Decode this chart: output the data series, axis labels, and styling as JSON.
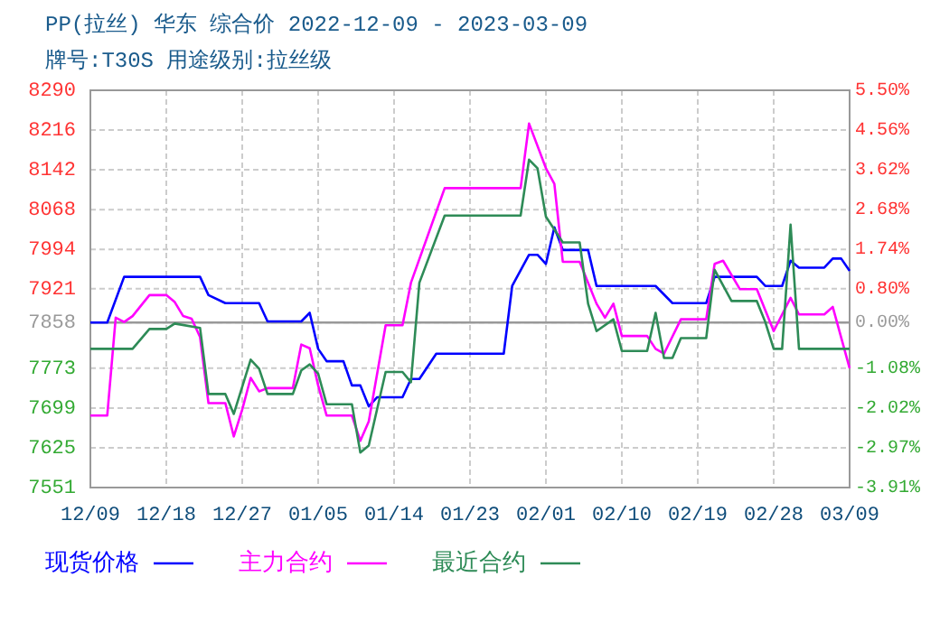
{
  "chart_data": {
    "type": "line",
    "title": "PP(拉丝) 华东 综合价 2022-12-09 - 2023-03-09",
    "subtitle": "牌号:T30S 用途级别:拉丝级",
    "xlim": [
      "2022-12-09",
      "2023-03-09"
    ],
    "xticks": [
      {
        "value": "2022-12-09",
        "label": "12/09"
      },
      {
        "value": "2022-12-18",
        "label": "12/18"
      },
      {
        "value": "2022-12-27",
        "label": "12/27"
      },
      {
        "value": "2023-01-05",
        "label": "01/05"
      },
      {
        "value": "2023-01-14",
        "label": "01/14"
      },
      {
        "value": "2023-01-23",
        "label": "01/23"
      },
      {
        "value": "2023-02-01",
        "label": "02/01"
      },
      {
        "value": "2023-02-10",
        "label": "02/10"
      },
      {
        "value": "2023-02-19",
        "label": "02/19"
      },
      {
        "value": "2023-02-28",
        "label": "02/28"
      },
      {
        "value": "2023-03-09",
        "label": "03/09"
      }
    ],
    "ylim": [
      7551,
      8290
    ],
    "yticks": [
      7551,
      7625,
      7699,
      7773,
      7858,
      7921,
      7994,
      8068,
      8142,
      8216,
      8290
    ],
    "y2lim": [
      -3.91,
      5.5
    ],
    "y2ticks": [
      {
        "value": -3.91,
        "label": "-3.91%"
      },
      {
        "value": -2.97,
        "label": "-2.97%"
      },
      {
        "value": -2.02,
        "label": "-2.02%"
      },
      {
        "value": -1.08,
        "label": "-1.08%"
      },
      {
        "value": 0,
        "label": "0.00%"
      },
      {
        "value": 0.8,
        "label": "0.80%"
      },
      {
        "value": 1.74,
        "label": "1.74%"
      },
      {
        "value": 2.68,
        "label": "2.68%"
      },
      {
        "value": 3.62,
        "label": "3.62%"
      },
      {
        "value": 4.56,
        "label": "4.56%"
      },
      {
        "value": 5.5,
        "label": "5.50%"
      }
    ],
    "ref_lines": [
      {
        "axis": "y",
        "value": 7858,
        "color": "#999999"
      }
    ],
    "grid": true,
    "legend": "bottom",
    "line_style": "solid",
    "series": [
      {
        "name": "现货价格",
        "color": "#0000ff",
        "x": [
          "2022-12-09",
          "2022-12-11",
          "2022-12-13",
          "2022-12-22",
          "2022-12-23",
          "2022-12-25",
          "2022-12-29",
          "2022-12-30",
          "2023-01-03",
          "2023-01-04",
          "2023-01-05",
          "2023-01-06",
          "2023-01-08",
          "2023-01-09",
          "2023-01-10",
          "2023-01-11",
          "2023-01-12",
          "2023-01-15",
          "2023-01-16",
          "2023-01-17",
          "2023-01-19",
          "2023-01-27",
          "2023-01-28",
          "2023-01-30",
          "2023-01-31",
          "2023-02-01",
          "2023-02-02",
          "2023-02-03",
          "2023-02-06",
          "2023-02-07",
          "2023-02-14",
          "2023-02-16",
          "2023-02-20",
          "2023-02-21",
          "2023-02-26",
          "2023-02-27",
          "2023-03-01",
          "2023-03-02",
          "2023-03-03",
          "2023-03-06",
          "2023-03-07",
          "2023-03-08",
          "2023-03-09"
        ],
        "values": [
          7858,
          7858,
          7943,
          7943,
          7909,
          7894,
          7894,
          7860,
          7860,
          7876,
          7809,
          7786,
          7786,
          7741,
          7741,
          7702,
          7719,
          7719,
          7753,
          7753,
          7800,
          7800,
          7926,
          7984,
          7984,
          7967,
          8035,
          7993,
          7993,
          7926,
          7926,
          7894,
          7894,
          7943,
          7943,
          7926,
          7926,
          7973,
          7960,
          7960,
          7977,
          7977,
          7954
        ]
      },
      {
        "name": "主力合约",
        "color": "#ff00ff",
        "x": [
          "2022-12-09",
          "2022-12-11",
          "2022-12-12",
          "2022-12-13",
          "2022-12-14",
          "2022-12-16",
          "2022-12-18",
          "2022-12-19",
          "2022-12-20",
          "2022-12-21",
          "2022-12-22",
          "2022-12-23",
          "2022-12-25",
          "2022-12-26",
          "2022-12-27",
          "2022-12-28",
          "2022-12-29",
          "2022-12-30",
          "2023-01-02",
          "2023-01-03",
          "2023-01-04",
          "2023-01-05",
          "2023-01-06",
          "2023-01-09",
          "2023-01-10",
          "2023-01-11",
          "2023-01-13",
          "2023-01-15",
          "2023-01-16",
          "2023-01-20",
          "2023-01-29",
          "2023-01-30",
          "2023-02-01",
          "2023-02-02",
          "2023-02-03",
          "2023-02-05",
          "2023-02-07",
          "2023-02-08",
          "2023-02-09",
          "2023-02-10",
          "2023-02-13",
          "2023-02-14",
          "2023-02-15",
          "2023-02-17",
          "2023-02-20",
          "2023-02-21",
          "2023-02-22",
          "2023-02-24",
          "2023-02-26",
          "2023-02-28",
          "2023-03-02",
          "2023-03-03",
          "2023-03-06",
          "2023-03-07",
          "2023-03-09"
        ],
        "values": [
          7685,
          7685,
          7867,
          7859,
          7870,
          7909,
          7909,
          7896,
          7870,
          7865,
          7831,
          7708,
          7708,
          7646,
          7696,
          7755,
          7730,
          7736,
          7736,
          7817,
          7810,
          7741,
          7685,
          7685,
          7638,
          7674,
          7853,
          7853,
          7932,
          8108,
          8108,
          8228,
          8145,
          8116,
          7971,
          7971,
          7893,
          7867,
          7893,
          7833,
          7833,
          7809,
          7800,
          7864,
          7864,
          7967,
          7973,
          7920,
          7920,
          7842,
          7904,
          7873,
          7873,
          7887,
          7773
        ]
      },
      {
        "name": "最近合约",
        "color": "#2e8b57",
        "x": [
          "2022-12-09",
          "2022-12-14",
          "2022-12-16",
          "2022-12-18",
          "2022-12-19",
          "2022-12-22",
          "2022-12-23",
          "2022-12-25",
          "2022-12-26",
          "2022-12-28",
          "2022-12-29",
          "2022-12-30",
          "2023-01-02",
          "2023-01-03",
          "2023-01-04",
          "2023-01-05",
          "2023-01-06",
          "2023-01-09",
          "2023-01-10",
          "2023-01-11",
          "2023-01-13",
          "2023-01-15",
          "2023-01-16",
          "2023-01-17",
          "2023-01-20",
          "2023-01-29",
          "2023-01-30",
          "2023-01-31",
          "2023-02-01",
          "2023-02-03",
          "2023-02-05",
          "2023-02-06",
          "2023-02-07",
          "2023-02-09",
          "2023-02-10",
          "2023-02-13",
          "2023-02-14",
          "2023-02-15",
          "2023-02-16",
          "2023-02-17",
          "2023-02-20",
          "2023-02-21",
          "2023-02-23",
          "2023-02-26",
          "2023-02-27",
          "2023-02-28",
          "2023-03-01",
          "2023-03-02",
          "2023-03-03",
          "2023-03-09"
        ],
        "values": [
          7809,
          7809,
          7846,
          7846,
          7856,
          7848,
          7725,
          7725,
          7688,
          7789,
          7772,
          7725,
          7725,
          7769,
          7780,
          7763,
          7706,
          7706,
          7616,
          7629,
          7766,
          7766,
          7747,
          7932,
          8057,
          8057,
          8161,
          8145,
          8055,
          8007,
          8007,
          7893,
          7842,
          7864,
          7805,
          7805,
          7876,
          7792,
          7792,
          7829,
          7829,
          7956,
          7898,
          7898,
          7859,
          7809,
          7809,
          8040,
          7809,
          7809
        ]
      }
    ]
  }
}
